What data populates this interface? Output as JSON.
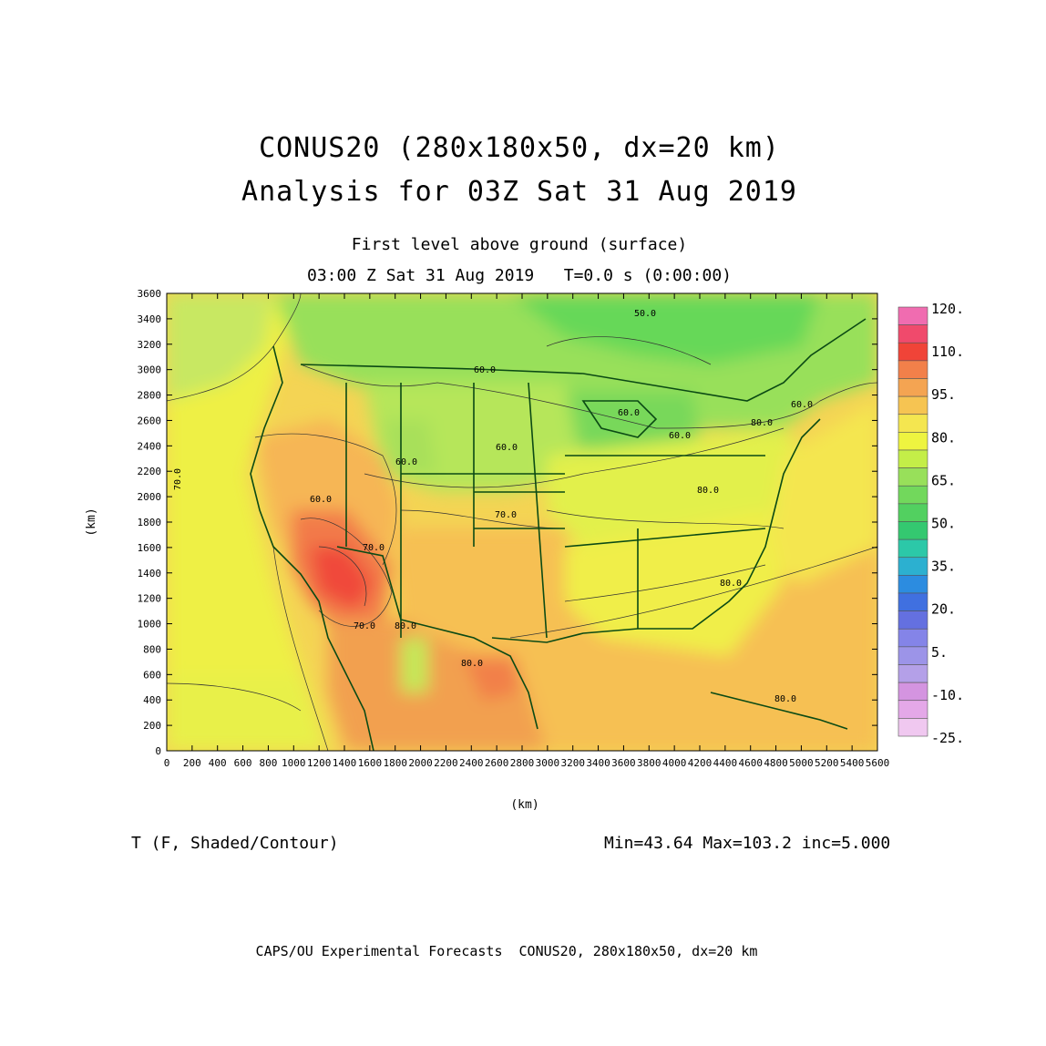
{
  "title": {
    "line1": "CONUS20 (280x180x50, dx=20 km)",
    "line2": "Analysis for 03Z Sat 31 Aug 2019"
  },
  "subtitle": {
    "line1": "First level above ground (surface)",
    "line2": "03:00 Z Sat 31 Aug 2019   T=0.0 s (0:00:00)"
  },
  "axes": {
    "x_label": "(km)",
    "y_label": "(km)",
    "x_ticks": [
      "0",
      "200",
      "400",
      "600",
      "800",
      "1000",
      "1200",
      "1400",
      "1600",
      "1800",
      "2000",
      "2200",
      "2400",
      "2600",
      "2800",
      "3000",
      "3200",
      "3400",
      "3600",
      "3800",
      "4000",
      "4200",
      "4400",
      "4600",
      "4800",
      "5000",
      "5200",
      "5400",
      "5600"
    ],
    "y_ticks": [
      "0",
      "200",
      "400",
      "600",
      "800",
      "1000",
      "1200",
      "1400",
      "1600",
      "1800",
      "2000",
      "2200",
      "2400",
      "2600",
      "2800",
      "3000",
      "3200",
      "3400",
      "3600"
    ],
    "x_range": [
      0,
      5600
    ],
    "y_range": [
      0,
      3600
    ]
  },
  "colorbar": {
    "labels": [
      "120.",
      "110.",
      "95.",
      "80.",
      "65.",
      "50.",
      "35.",
      "20.",
      "5.",
      "-10.",
      "-25."
    ],
    "colors": [
      "#f06cb0",
      "#f04a6c",
      "#f04438",
      "#f2804a",
      "#f4a452",
      "#f6c452",
      "#f4e650",
      "#eef440",
      "#c4ee48",
      "#98e05a",
      "#72d85c",
      "#52d060",
      "#34c870",
      "#2cc8a8",
      "#2cb0d0",
      "#2c8ce0",
      "#4070e0",
      "#6470e0",
      "#8484e8",
      "#9c94e8",
      "#b4a0e8",
      "#d494e0",
      "#e4a8e8",
      "#f0c8f0"
    ]
  },
  "variable_label": "T (F, Shaded/Contour)",
  "stats": "Min=43.64 Max=103.2 inc=5.000",
  "contour_labels": [
    "50.0",
    "60.0",
    "60.0",
    "60.0",
    "60.0",
    "70.0",
    "70.0",
    "70.0",
    "70.0",
    "80.0",
    "80.0",
    "80.0",
    "80.0",
    "80.0",
    "80.0",
    "60.0",
    "60.0",
    "60.0"
  ],
  "footer": "CAPS/OU Experimental Forecasts  CONUS20, 280x180x50, dx=20 km"
}
